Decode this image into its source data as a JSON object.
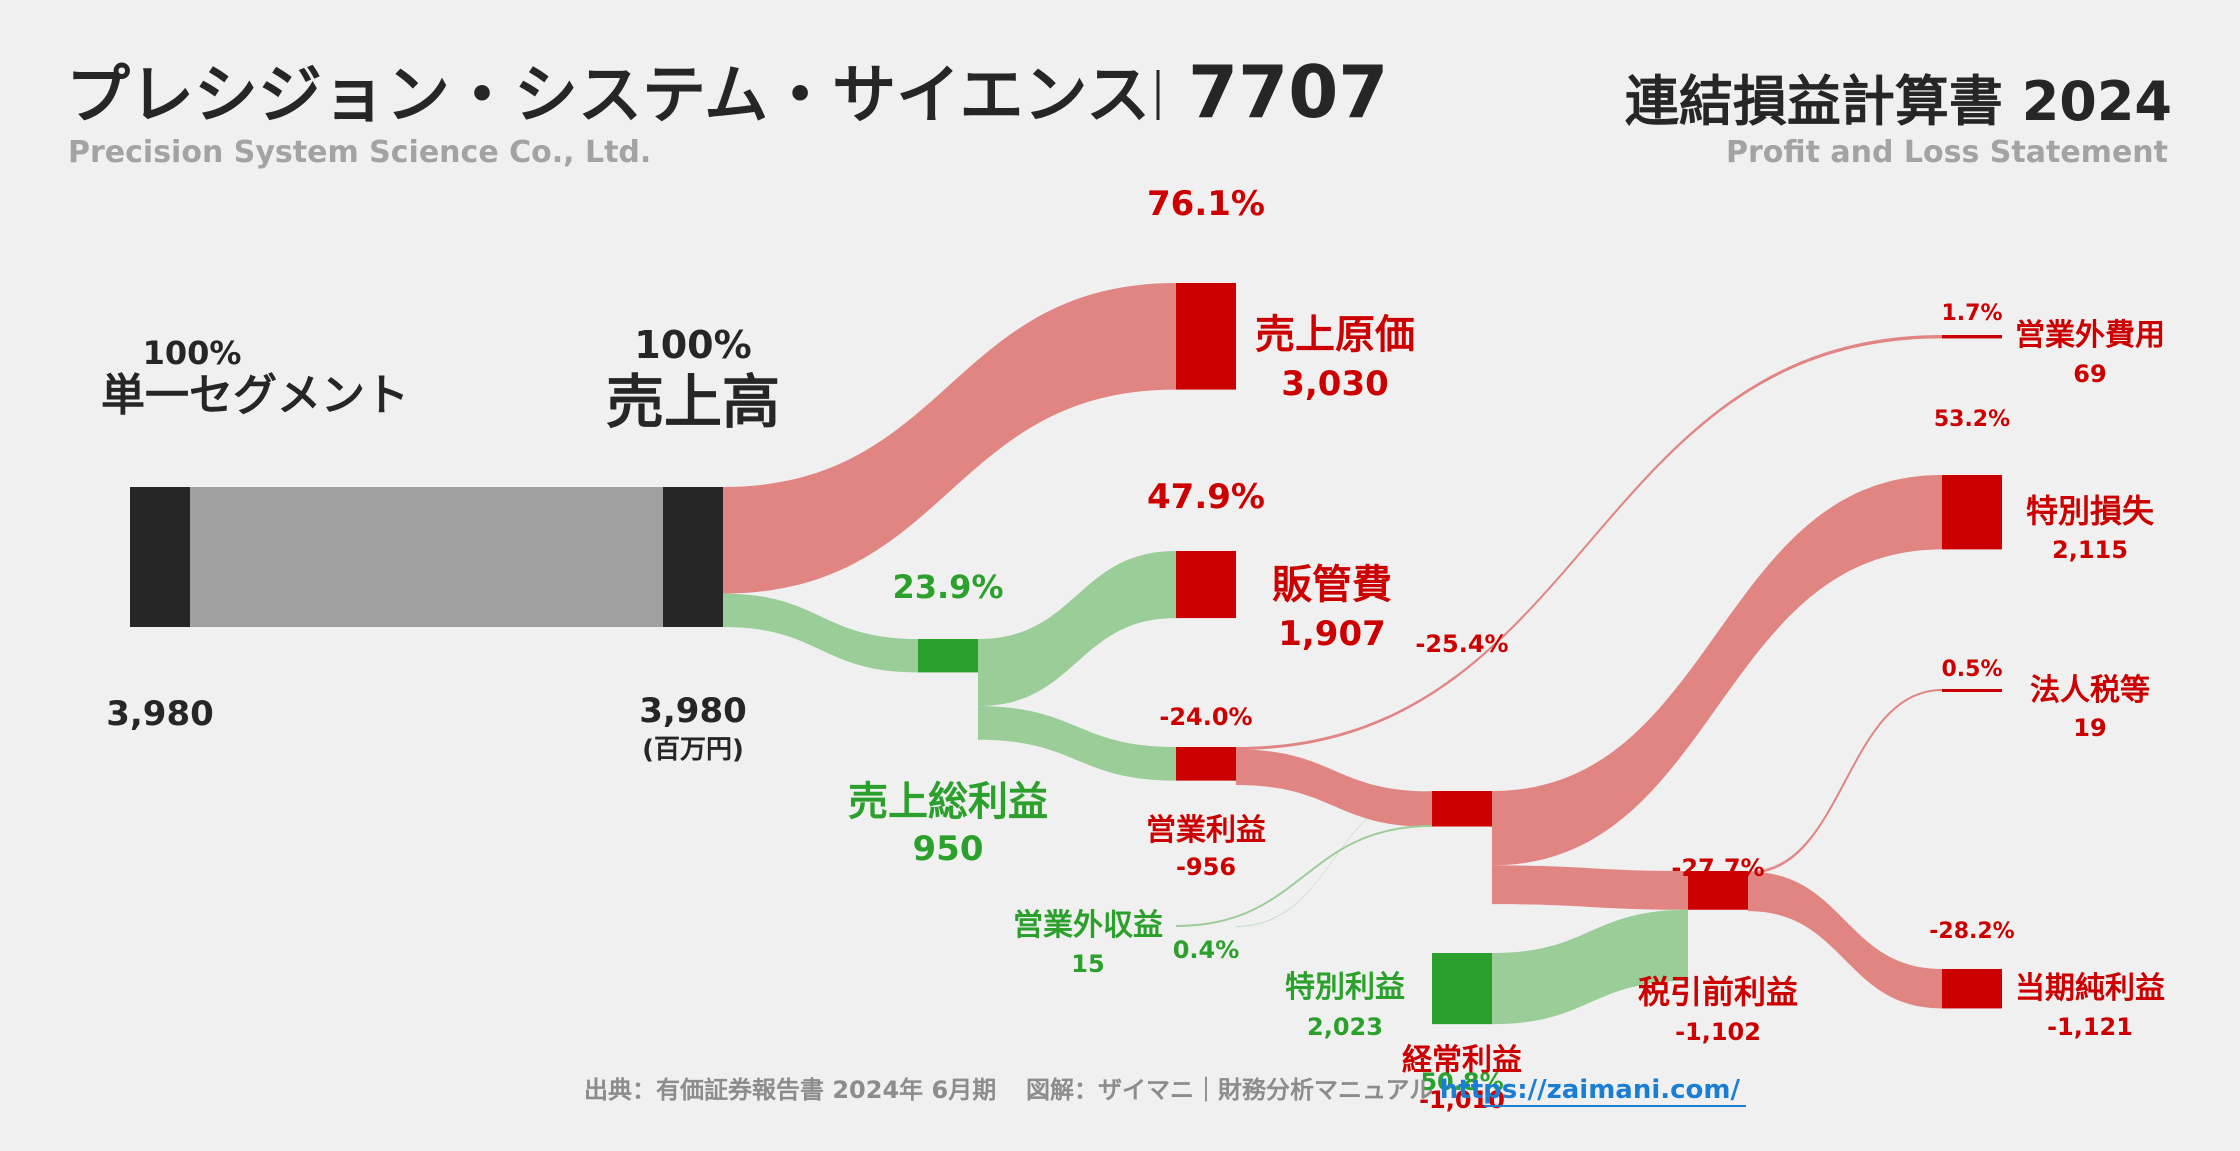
{
  "header": {
    "company": "プレシジョン・システム・サイエンス",
    "ticker": "7707",
    "company_en": "Precision System Science Co., Ltd.",
    "statement": "連結損益計算書 2024",
    "statement_en": "Profit and Loss Statement"
  },
  "footer": {
    "source": "出典：有価証券報告書 2024年 6月期",
    "credit": "図解：ザイマニ｜財務分析マニュアル",
    "url": "https://zaimani.com/"
  },
  "colors": {
    "black": "#262626",
    "gray_bar": "#a0a0a0",
    "red": "#cc0000",
    "red_flow": "#e18583",
    "green": "#2ca02c",
    "green_flow": "#9bcd99",
    "link": "#1a7fd4"
  },
  "chart_data": {
    "type": "sankey",
    "unit": "(百万円)",
    "nodes": [
      {
        "id": "segment",
        "label": "単一セグメント",
        "value": 3980,
        "value_label": "3,980",
        "pct": "100%"
      },
      {
        "id": "revenue",
        "label": "売上高",
        "value": 3980,
        "value_label": "3,980",
        "pct": "100%"
      },
      {
        "id": "cogs",
        "label": "売上原価",
        "value": 3030,
        "value_label": "3,030",
        "pct": "76.1%"
      },
      {
        "id": "gross_profit",
        "label": "売上総利益",
        "value": 950,
        "value_label": "950",
        "pct": "23.9%"
      },
      {
        "id": "sga",
        "label": "販管費",
        "value": 1907,
        "value_label": "1,907",
        "pct": "47.9%"
      },
      {
        "id": "operating_income",
        "label": "営業利益",
        "value": -956,
        "value_label": "-956",
        "pct": "-24.0%"
      },
      {
        "id": "non_op_income",
        "label": "営業外収益",
        "value": 15,
        "value_label": "15",
        "pct": "0.4%"
      },
      {
        "id": "non_op_expense",
        "label": "営業外費用",
        "value": 69,
        "value_label": "69",
        "pct": "1.7%"
      },
      {
        "id": "ordinary_income",
        "label": "経常利益",
        "value": -1010,
        "value_label": "-1,010",
        "pct": "-25.4%"
      },
      {
        "id": "extraordinary_income",
        "label": "特別利益",
        "value": 2023,
        "value_label": "2,023",
        "pct": "50.8%"
      },
      {
        "id": "extraordinary_loss",
        "label": "特別損失",
        "value": 2115,
        "value_label": "2,115",
        "pct": "53.2%"
      },
      {
        "id": "pretax_income",
        "label": "税引前利益",
        "value": -1102,
        "value_label": "-1,102",
        "pct": "-27.7%"
      },
      {
        "id": "income_taxes",
        "label": "法人税等",
        "value": 19,
        "value_label": "19",
        "pct": "0.5%"
      },
      {
        "id": "net_income",
        "label": "当期純利益",
        "value": -1121,
        "value_label": "-1,121",
        "pct": "-28.2%"
      }
    ],
    "links": [
      {
        "source": "segment",
        "target": "revenue",
        "value": 3980
      },
      {
        "source": "revenue",
        "target": "cogs",
        "value": 3030
      },
      {
        "source": "revenue",
        "target": "gross_profit",
        "value": 950
      },
      {
        "source": "gross_profit",
        "target": "sga",
        "value": 1907
      },
      {
        "source": "gross_profit",
        "target": "operating_income",
        "value": 956
      },
      {
        "source": "operating_income",
        "target": "non_op_expense",
        "value": 69
      },
      {
        "source": "non_op_income",
        "target": "ordinary_income",
        "value": 15
      },
      {
        "source": "operating_income",
        "target": "ordinary_income",
        "value": 1010
      },
      {
        "source": "ordinary_income",
        "target": "extraordinary_loss",
        "value": 2115
      },
      {
        "source": "ordinary_income",
        "target": "pretax_income",
        "value": 1102
      },
      {
        "source": "extraordinary_income",
        "target": "pretax_income",
        "value": 2023
      },
      {
        "source": "pretax_income",
        "target": "income_taxes",
        "value": 19
      },
      {
        "source": "pretax_income",
        "target": "net_income",
        "value": 1121
      }
    ]
  }
}
